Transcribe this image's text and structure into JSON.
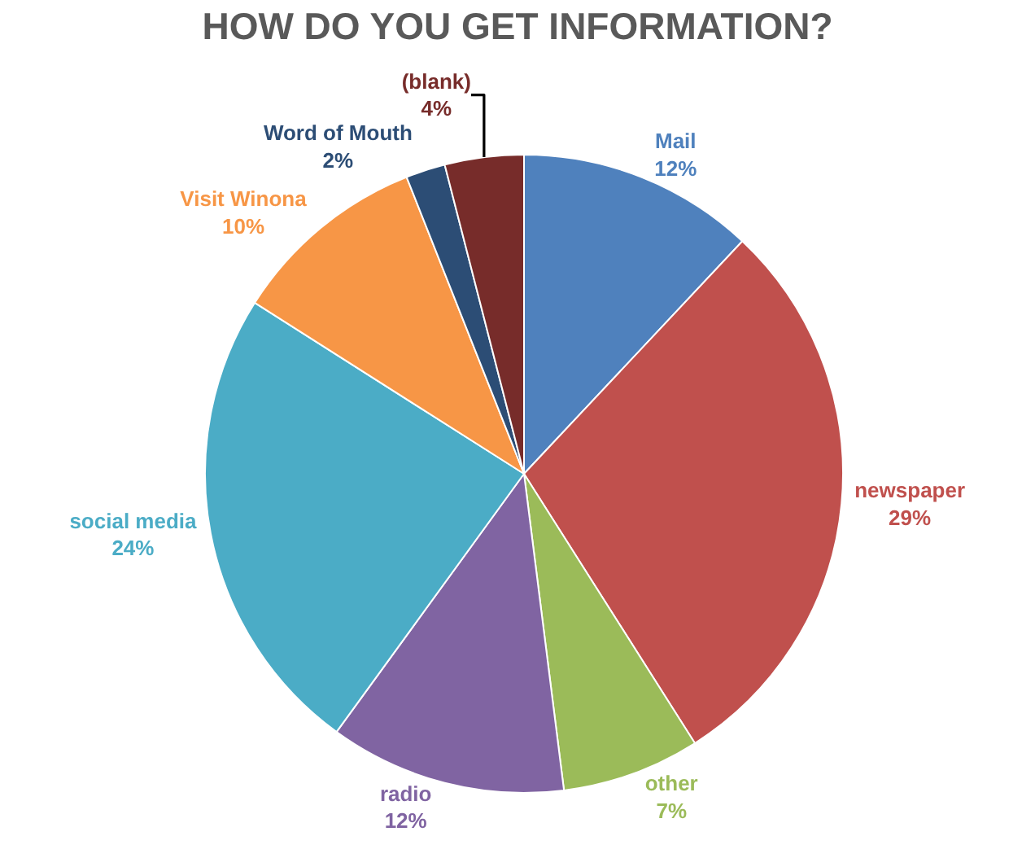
{
  "chart_data": {
    "type": "pie",
    "title": "HOW DO YOU GET INFORMATION?",
    "categories": [
      "Mail",
      "newspaper",
      "other",
      "radio",
      "social media",
      "Visit Winona",
      "Word of Mouth",
      "(blank)"
    ],
    "values": [
      12,
      29,
      7,
      12,
      24,
      10,
      2,
      4
    ],
    "value_labels": [
      "12%",
      "29%",
      "7%",
      "12%",
      "24%",
      "10%",
      "2%",
      "4%"
    ],
    "colors": [
      "#4f81bd",
      "#c0504d",
      "#9bbb59",
      "#8064a2",
      "#4bacc6",
      "#f79646",
      "#2c4d75",
      "#772c2a"
    ],
    "legend": false
  }
}
